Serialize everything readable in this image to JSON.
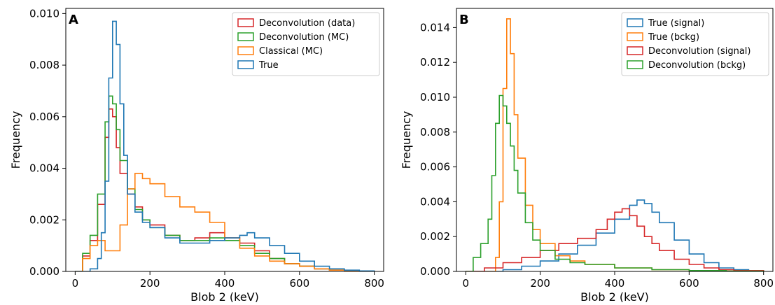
{
  "chart_data": [
    {
      "type": "step-histogram",
      "panel_label": "A",
      "xlabel": "Blob 2 (keV)",
      "ylabel": "Frequency",
      "xlim": [
        -25,
        825
      ],
      "ylim": [
        0,
        0.0102
      ],
      "xticks": [
        0,
        200,
        400,
        600,
        800
      ],
      "yticks": [
        0.0,
        0.002,
        0.004,
        0.006,
        0.008,
        0.01
      ],
      "ytick_labels": [
        "0.000",
        "0.002",
        "0.004",
        "0.006",
        "0.008",
        "0.010"
      ],
      "legend_position": "upper right",
      "series": [
        {
          "name": "Deconvolution (data)",
          "color": "#d62728",
          "x": [
            0,
            20,
            40,
            60,
            80,
            90,
            100,
            110,
            120,
            140,
            160,
            180,
            200,
            240,
            280,
            320,
            360,
            400,
            440,
            480,
            520,
            560,
            600,
            640,
            680,
            720,
            760,
            800
          ],
          "y": [
            0.0,
            0.0006,
            0.0012,
            0.0026,
            0.0052,
            0.0063,
            0.006,
            0.0048,
            0.0038,
            0.003,
            0.0025,
            0.002,
            0.0018,
            0.0014,
            0.0012,
            0.0013,
            0.0015,
            0.0013,
            0.0011,
            0.0008,
            0.0005,
            0.0003,
            0.0002,
            0.0001,
            5e-05,
            2e-05,
            0.0,
            0.0
          ]
        },
        {
          "name": "Deconvolution (MC)",
          "color": "#2ca02c",
          "x": [
            0,
            20,
            40,
            60,
            80,
            90,
            100,
            110,
            120,
            140,
            160,
            180,
            200,
            240,
            280,
            320,
            360,
            400,
            440,
            480,
            520,
            560,
            600,
            640,
            680,
            720,
            760,
            800
          ],
          "y": [
            0.0,
            0.0007,
            0.0014,
            0.003,
            0.0058,
            0.0068,
            0.0065,
            0.0055,
            0.0043,
            0.0032,
            0.0024,
            0.002,
            0.0017,
            0.0014,
            0.0012,
            0.0012,
            0.0013,
            0.0012,
            0.001,
            0.0007,
            0.0005,
            0.0003,
            0.0002,
            0.0001,
            5e-05,
            2e-05,
            0.0,
            0.0
          ]
        },
        {
          "name": "Classical (MC)",
          "color": "#ff7f0e",
          "x": [
            0,
            20,
            40,
            60,
            80,
            100,
            120,
            140,
            160,
            180,
            200,
            240,
            280,
            320,
            360,
            400,
            440,
            480,
            520,
            560,
            600,
            640,
            680,
            720,
            760,
            800
          ],
          "y": [
            0.0,
            0.0005,
            0.001,
            0.0012,
            0.0008,
            0.0008,
            0.0018,
            0.0032,
            0.0038,
            0.0036,
            0.0034,
            0.0029,
            0.0025,
            0.0023,
            0.0019,
            0.0013,
            0.0009,
            0.0006,
            0.0004,
            0.0003,
            0.0002,
            0.0001,
            5e-05,
            2e-05,
            0.0,
            0.0
          ]
        },
        {
          "name": "True",
          "color": "#1f77b4",
          "x": [
            0,
            20,
            40,
            60,
            70,
            80,
            90,
            100,
            110,
            120,
            130,
            140,
            160,
            180,
            200,
            240,
            280,
            320,
            360,
            400,
            440,
            460,
            480,
            520,
            560,
            600,
            640,
            680,
            720,
            760,
            800
          ],
          "y": [
            0.0,
            0.0,
            0.0001,
            0.0005,
            0.0015,
            0.0035,
            0.0075,
            0.0097,
            0.0088,
            0.0065,
            0.0045,
            0.003,
            0.0023,
            0.0019,
            0.0017,
            0.0013,
            0.0011,
            0.0011,
            0.0012,
            0.0013,
            0.0014,
            0.0015,
            0.0013,
            0.001,
            0.0007,
            0.0004,
            0.0002,
            0.0001,
            5e-05,
            2e-05,
            0.0
          ]
        }
      ]
    },
    {
      "type": "step-histogram",
      "panel_label": "B",
      "xlabel": "Blob 2 (keV)",
      "ylabel": "Frequency",
      "xlim": [
        -25,
        825
      ],
      "ylim": [
        0,
        0.0151
      ],
      "xticks": [
        0,
        200,
        400,
        600,
        800
      ],
      "yticks": [
        0.0,
        0.002,
        0.004,
        0.006,
        0.008,
        0.01,
        0.012,
        0.014
      ],
      "ytick_labels": [
        "0.000",
        "0.002",
        "0.004",
        "0.006",
        "0.008",
        "0.010",
        "0.012",
        "0.014"
      ],
      "legend_position": "upper right",
      "series": [
        {
          "name": "True (signal)",
          "color": "#1f77b4",
          "x": [
            0,
            50,
            100,
            150,
            200,
            250,
            300,
            350,
            400,
            440,
            460,
            480,
            500,
            520,
            560,
            600,
            640,
            680,
            720,
            760,
            800
          ],
          "y": [
            0.0,
            0.0,
            0.0001,
            0.0003,
            0.0006,
            0.001,
            0.0015,
            0.0022,
            0.003,
            0.0038,
            0.0041,
            0.0039,
            0.0034,
            0.0028,
            0.0018,
            0.001,
            0.0005,
            0.0002,
            0.0001,
            5e-05,
            0.0
          ]
        },
        {
          "name": "True (bckg)",
          "color": "#ff7f0e",
          "x": [
            0,
            60,
            80,
            90,
            100,
            110,
            120,
            130,
            140,
            160,
            180,
            200,
            240,
            280,
            320,
            400,
            500,
            600,
            700,
            800
          ],
          "y": [
            0.0,
            0.0,
            0.0008,
            0.004,
            0.0105,
            0.0145,
            0.0125,
            0.009,
            0.0065,
            0.0038,
            0.0024,
            0.0016,
            0.0009,
            0.0006,
            0.0004,
            0.0002,
            0.0001,
            5e-05,
            2e-05,
            0.0
          ]
        },
        {
          "name": "Deconvolution (signal)",
          "color": "#d62728",
          "x": [
            0,
            50,
            100,
            150,
            200,
            250,
            300,
            350,
            380,
            400,
            420,
            440,
            460,
            480,
            500,
            520,
            560,
            600,
            640,
            680,
            720,
            800
          ],
          "y": [
            0.0,
            0.0002,
            0.0005,
            0.0008,
            0.0012,
            0.0016,
            0.0019,
            0.0024,
            0.003,
            0.0034,
            0.0036,
            0.0032,
            0.0026,
            0.002,
            0.0016,
            0.0012,
            0.0007,
            0.0004,
            0.0002,
            0.0001,
            5e-05,
            0.0
          ]
        },
        {
          "name": "Deconvolution (bckg)",
          "color": "#2ca02c",
          "x": [
            0,
            20,
            40,
            60,
            70,
            80,
            90,
            100,
            110,
            120,
            130,
            140,
            160,
            180,
            200,
            240,
            280,
            320,
            400,
            500,
            600,
            700,
            800
          ],
          "y": [
            0.0,
            0.0008,
            0.0016,
            0.003,
            0.0055,
            0.0085,
            0.0101,
            0.0095,
            0.0085,
            0.0072,
            0.0058,
            0.0045,
            0.0028,
            0.0018,
            0.0012,
            0.0007,
            0.0005,
            0.0004,
            0.0002,
            0.0001,
            5e-05,
            2e-05,
            0.0
          ]
        }
      ]
    }
  ]
}
